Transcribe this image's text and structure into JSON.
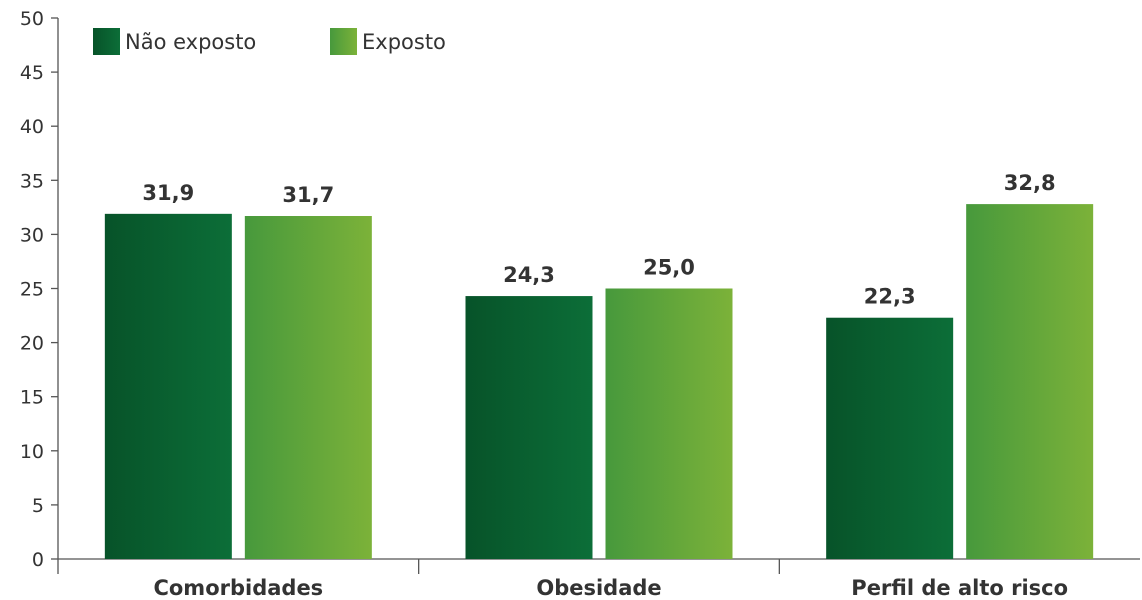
{
  "chart_data": {
    "type": "bar",
    "categories": [
      "Comorbidades",
      "Obesidade",
      "Perfil de alto risco"
    ],
    "series": [
      {
        "name": "Não exposto",
        "values": [
          31.9,
          24.3,
          22.3
        ],
        "value_labels": [
          "31,9",
          "24,3",
          "22,3"
        ]
      },
      {
        "name": "Exposto",
        "values": [
          31.7,
          25.0,
          32.8
        ],
        "value_labels": [
          "31,7",
          "25,0",
          "32,8"
        ]
      }
    ],
    "ylim": [
      0,
      50
    ],
    "yticks": [
      0,
      5,
      10,
      15,
      20,
      25,
      30,
      35,
      40,
      45,
      50
    ],
    "ytick_labels": [
      "0",
      "5",
      "10",
      "15",
      "20",
      "25",
      "30",
      "35",
      "40",
      "45",
      "50"
    ],
    "grid": false,
    "legend_position": "top-left",
    "title": "",
    "xlabel": "",
    "ylabel": ""
  },
  "colors": {
    "not_exposed_dark": "#075329",
    "not_exposed_light": "#0c6e38",
    "exposed_dark": "#47993c",
    "exposed_light": "#7cb239"
  }
}
